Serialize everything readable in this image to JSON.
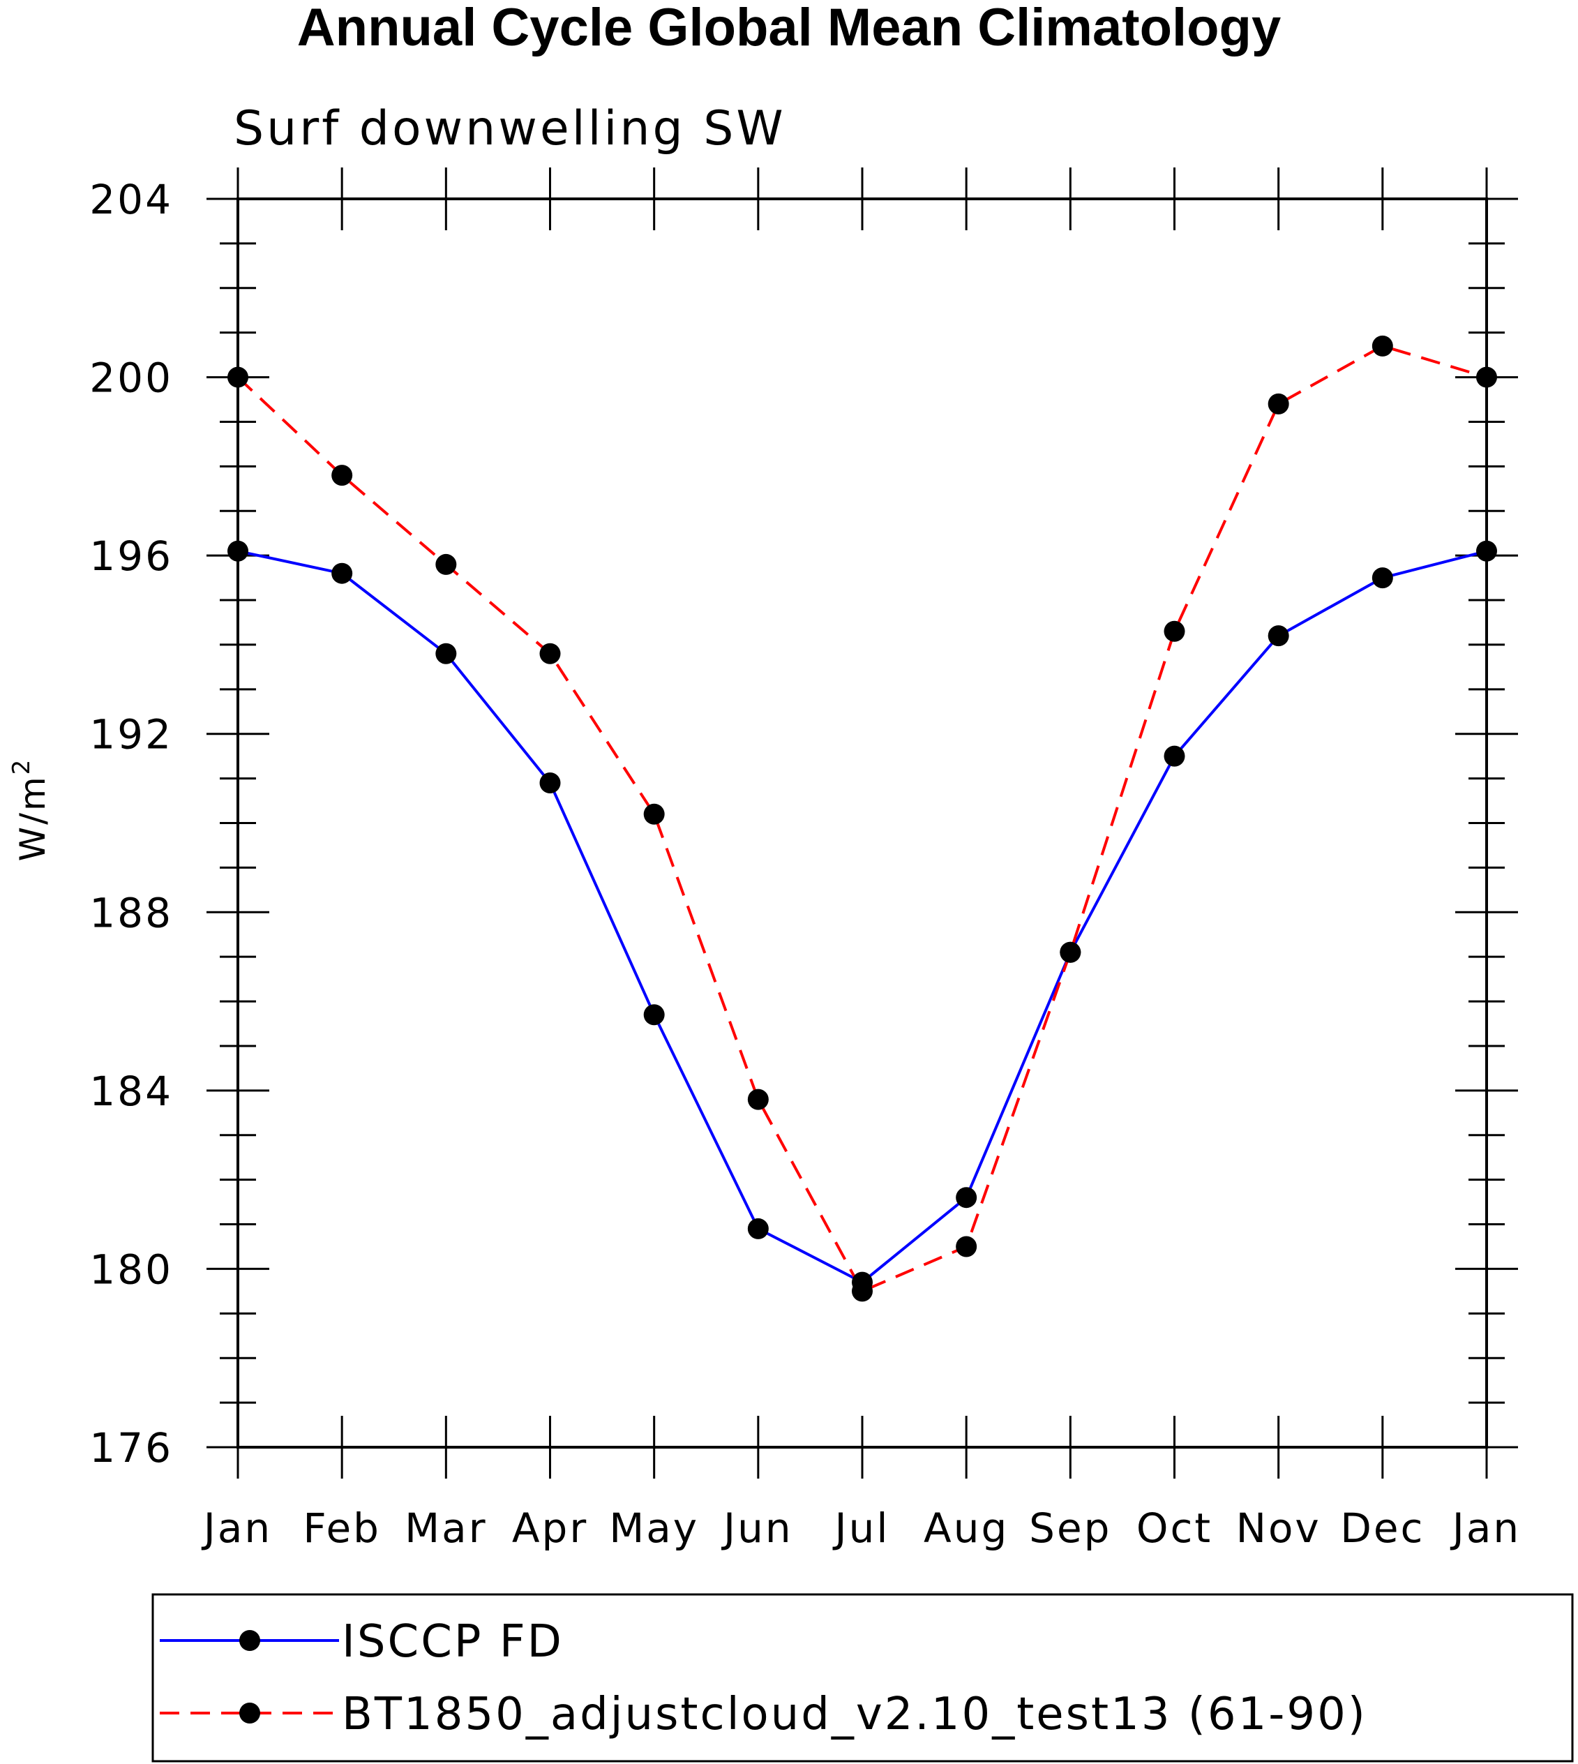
{
  "chart_data": {
    "type": "line",
    "title": "Annual Cycle Global Mean Climatology",
    "subtitle": "Surf downwelling SW",
    "ylabel": "W/m",
    "ylabel_superscript": "2",
    "xlabel": "",
    "categories": [
      "Jan",
      "Feb",
      "Mar",
      "Apr",
      "May",
      "Jun",
      "Jul",
      "Aug",
      "Sep",
      "Oct",
      "Nov",
      "Dec",
      "Jan"
    ],
    "ylim": [
      176,
      204
    ],
    "yticks": [
      176,
      180,
      184,
      188,
      192,
      196,
      200,
      204
    ],
    "grid": false,
    "legend_position": "bottom",
    "series": [
      {
        "name": "ISCCP FD",
        "color": "#0000ff",
        "line_style": "solid",
        "marker": "filled-circle",
        "values": [
          196.1,
          195.6,
          193.8,
          190.9,
          185.7,
          180.9,
          179.7,
          181.6,
          187.1,
          191.5,
          194.2,
          195.5,
          196.1
        ]
      },
      {
        "name": "BT1850_adjustcloud_v2.10_test13 (61-90)",
        "color": "#ff0000",
        "line_style": "dashed",
        "marker": "filled-circle",
        "values": [
          200.0,
          197.8,
          195.8,
          193.8,
          190.2,
          183.8,
          179.5,
          180.5,
          187.1,
          194.3,
          199.4,
          200.7,
          200.0
        ]
      }
    ]
  }
}
